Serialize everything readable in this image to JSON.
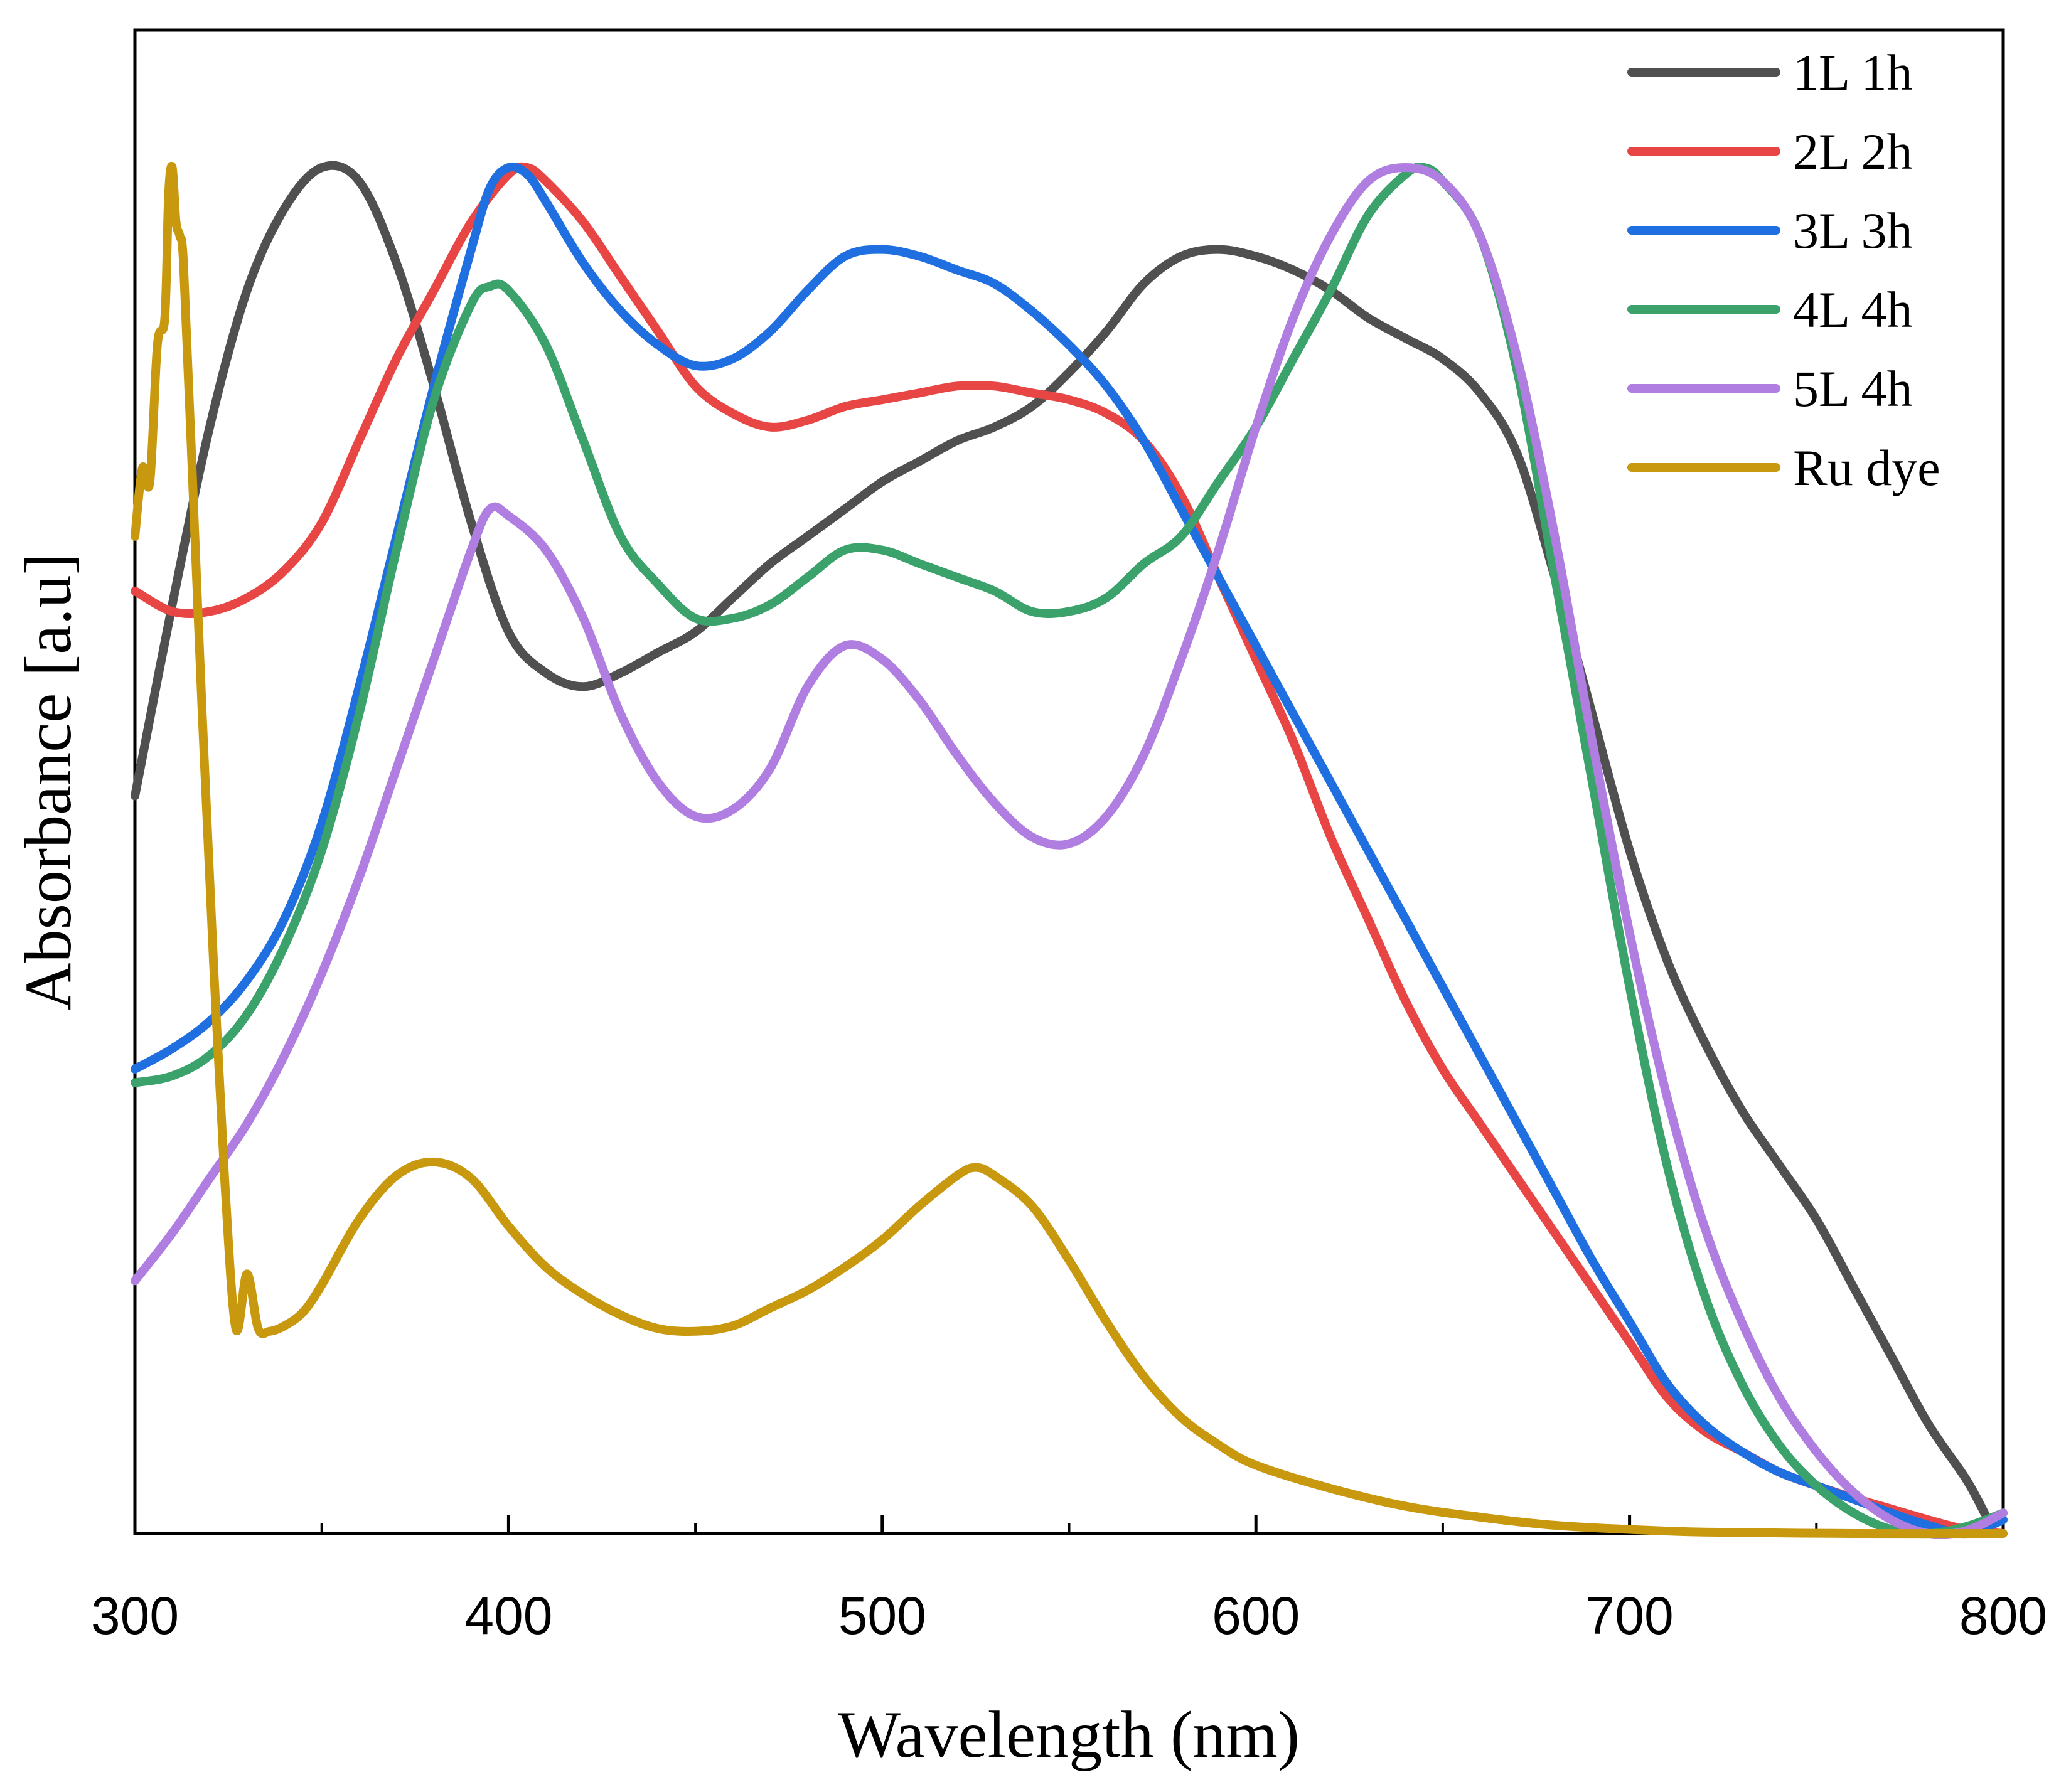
{
  "chart_data": {
    "type": "line",
    "title": "",
    "xlabel": "Wavelength (nm)",
    "ylabel": "Absorbance [a.u]",
    "xlim": [
      300,
      800
    ],
    "ylim": [
      0,
      1
    ],
    "xticks": [
      "300",
      "400",
      "500",
      "600",
      "700",
      "800"
    ],
    "xtick_values": [
      300,
      400,
      500,
      600,
      700,
      800
    ],
    "x_minor_step": 50,
    "y_ticks_shown": false,
    "grid": false,
    "legend_position": "top-right",
    "series": [
      {
        "name": "1L 1h",
        "color": "#505050",
        "points": [
          [
            300,
            0.54
          ],
          [
            310,
            0.68
          ],
          [
            320,
            0.81
          ],
          [
            330,
            0.91
          ],
          [
            340,
            0.97
          ],
          [
            350,
            1.0
          ],
          [
            360,
            0.99
          ],
          [
            370,
            0.93
          ],
          [
            380,
            0.84
          ],
          [
            390,
            0.74
          ],
          [
            400,
            0.66
          ],
          [
            410,
            0.63
          ],
          [
            420,
            0.62
          ],
          [
            430,
            0.63
          ],
          [
            440,
            0.645
          ],
          [
            450,
            0.66
          ],
          [
            460,
            0.685
          ],
          [
            470,
            0.71
          ],
          [
            480,
            0.73
          ],
          [
            490,
            0.75
          ],
          [
            500,
            0.77
          ],
          [
            510,
            0.785
          ],
          [
            520,
            0.8
          ],
          [
            530,
            0.81
          ],
          [
            540,
            0.825
          ],
          [
            550,
            0.85
          ],
          [
            560,
            0.88
          ],
          [
            570,
            0.915
          ],
          [
            580,
            0.935
          ],
          [
            590,
            0.94
          ],
          [
            600,
            0.935
          ],
          [
            610,
            0.925
          ],
          [
            620,
            0.91
          ],
          [
            630,
            0.89
          ],
          [
            640,
            0.875
          ],
          [
            650,
            0.86
          ],
          [
            660,
            0.835
          ],
          [
            670,
            0.79
          ],
          [
            680,
            0.7
          ],
          [
            690,
            0.6
          ],
          [
            700,
            0.5
          ],
          [
            710,
            0.42
          ],
          [
            720,
            0.36
          ],
          [
            730,
            0.31
          ],
          [
            740,
            0.27
          ],
          [
            750,
            0.23
          ],
          [
            760,
            0.18
          ],
          [
            770,
            0.13
          ],
          [
            780,
            0.08
          ],
          [
            790,
            0.04
          ],
          [
            795,
            0.015
          ]
        ]
      },
      {
        "name": "2L 2h",
        "color": "#e84545",
        "points": [
          [
            300,
            0.69
          ],
          [
            310,
            0.675
          ],
          [
            320,
            0.675
          ],
          [
            330,
            0.685
          ],
          [
            340,
            0.705
          ],
          [
            350,
            0.74
          ],
          [
            360,
            0.8
          ],
          [
            370,
            0.86
          ],
          [
            380,
            0.91
          ],
          [
            390,
            0.96
          ],
          [
            400,
            0.995
          ],
          [
            405,
            1.0
          ],
          [
            410,
            0.99
          ],
          [
            420,
            0.96
          ],
          [
            430,
            0.92
          ],
          [
            440,
            0.88
          ],
          [
            450,
            0.84
          ],
          [
            460,
            0.82
          ],
          [
            470,
            0.81
          ],
          [
            480,
            0.815
          ],
          [
            490,
            0.825
          ],
          [
            500,
            0.83
          ],
          [
            510,
            0.835
          ],
          [
            520,
            0.84
          ],
          [
            530,
            0.84
          ],
          [
            540,
            0.835
          ],
          [
            550,
            0.83
          ],
          [
            560,
            0.82
          ],
          [
            570,
            0.8
          ],
          [
            580,
            0.76
          ],
          [
            590,
            0.7
          ],
          [
            600,
            0.64
          ],
          [
            610,
            0.58
          ],
          [
            620,
            0.51
          ],
          [
            630,
            0.45
          ],
          [
            640,
            0.39
          ],
          [
            650,
            0.34
          ],
          [
            660,
            0.3
          ],
          [
            670,
            0.26
          ],
          [
            680,
            0.22
          ],
          [
            690,
            0.18
          ],
          [
            700,
            0.14
          ],
          [
            710,
            0.1
          ],
          [
            720,
            0.075
          ],
          [
            730,
            0.06
          ],
          [
            740,
            0.045
          ],
          [
            750,
            0.035
          ],
          [
            760,
            0.026
          ],
          [
            770,
            0.018
          ],
          [
            780,
            0.01
          ],
          [
            790,
            0.003
          ],
          [
            800,
            0.0
          ]
        ]
      },
      {
        "name": "3L 3h",
        "color": "#1f6fe0",
        "points": [
          [
            300,
            0.34
          ],
          [
            310,
            0.355
          ],
          [
            320,
            0.375
          ],
          [
            330,
            0.405
          ],
          [
            340,
            0.45
          ],
          [
            350,
            0.52
          ],
          [
            360,
            0.62
          ],
          [
            370,
            0.73
          ],
          [
            380,
            0.84
          ],
          [
            390,
            0.94
          ],
          [
            395,
            0.985
          ],
          [
            400,
            1.0
          ],
          [
            405,
            0.995
          ],
          [
            410,
            0.975
          ],
          [
            420,
            0.93
          ],
          [
            430,
            0.895
          ],
          [
            440,
            0.87
          ],
          [
            450,
            0.855
          ],
          [
            460,
            0.86
          ],
          [
            470,
            0.88
          ],
          [
            480,
            0.91
          ],
          [
            490,
            0.935
          ],
          [
            500,
            0.94
          ],
          [
            510,
            0.935
          ],
          [
            520,
            0.925
          ],
          [
            530,
            0.915
          ],
          [
            540,
            0.895
          ],
          [
            550,
            0.87
          ],
          [
            560,
            0.84
          ],
          [
            570,
            0.8
          ],
          [
            580,
            0.75
          ],
          [
            590,
            0.7
          ],
          [
            600,
            0.65
          ],
          [
            610,
            0.6
          ],
          [
            620,
            0.55
          ],
          [
            630,
            0.5
          ],
          [
            640,
            0.45
          ],
          [
            650,
            0.4
          ],
          [
            660,
            0.35
          ],
          [
            670,
            0.3
          ],
          [
            680,
            0.25
          ],
          [
            690,
            0.2
          ],
          [
            700,
            0.155
          ],
          [
            710,
            0.11
          ],
          [
            720,
            0.08
          ],
          [
            730,
            0.06
          ],
          [
            740,
            0.045
          ],
          [
            750,
            0.035
          ],
          [
            760,
            0.025
          ],
          [
            770,
            0.015
          ],
          [
            780,
            0.006
          ],
          [
            790,
            0.0
          ],
          [
            800,
            0.01
          ]
        ]
      },
      {
        "name": "4L 4h",
        "color": "#3aa26a",
        "points": [
          [
            300,
            0.33
          ],
          [
            310,
            0.335
          ],
          [
            320,
            0.35
          ],
          [
            330,
            0.38
          ],
          [
            340,
            0.43
          ],
          [
            350,
            0.5
          ],
          [
            360,
            0.6
          ],
          [
            370,
            0.72
          ],
          [
            380,
            0.83
          ],
          [
            390,
            0.9
          ],
          [
            395,
            0.913
          ],
          [
            400,
            0.91
          ],
          [
            410,
            0.87
          ],
          [
            420,
            0.8
          ],
          [
            430,
            0.73
          ],
          [
            440,
            0.695
          ],
          [
            450,
            0.67
          ],
          [
            460,
            0.67
          ],
          [
            470,
            0.68
          ],
          [
            480,
            0.7
          ],
          [
            490,
            0.72
          ],
          [
            500,
            0.72
          ],
          [
            510,
            0.71
          ],
          [
            520,
            0.7
          ],
          [
            530,
            0.69
          ],
          [
            540,
            0.675
          ],
          [
            550,
            0.675
          ],
          [
            560,
            0.685
          ],
          [
            570,
            0.71
          ],
          [
            580,
            0.73
          ],
          [
            590,
            0.77
          ],
          [
            600,
            0.81
          ],
          [
            610,
            0.86
          ],
          [
            620,
            0.91
          ],
          [
            630,
            0.965
          ],
          [
            640,
            0.995
          ],
          [
            645,
            1.0
          ],
          [
            650,
            0.99
          ],
          [
            660,
            0.95
          ],
          [
            670,
            0.85
          ],
          [
            680,
            0.7
          ],
          [
            690,
            0.55
          ],
          [
            700,
            0.4
          ],
          [
            710,
            0.27
          ],
          [
            720,
            0.175
          ],
          [
            730,
            0.11
          ],
          [
            740,
            0.065
          ],
          [
            750,
            0.035
          ],
          [
            760,
            0.015
          ],
          [
            770,
            0.003
          ],
          [
            780,
            0.0
          ],
          [
            790,
            0.005
          ],
          [
            800,
            0.015
          ]
        ]
      },
      {
        "name": "5L 4h",
        "color": "#b07ee0",
        "points": [
          [
            300,
            0.185
          ],
          [
            310,
            0.22
          ],
          [
            320,
            0.26
          ],
          [
            330,
            0.3
          ],
          [
            340,
            0.35
          ],
          [
            350,
            0.41
          ],
          [
            360,
            0.48
          ],
          [
            370,
            0.56
          ],
          [
            380,
            0.64
          ],
          [
            390,
            0.72
          ],
          [
            395,
            0.75
          ],
          [
            400,
            0.745
          ],
          [
            410,
            0.72
          ],
          [
            420,
            0.67
          ],
          [
            430,
            0.6
          ],
          [
            440,
            0.55
          ],
          [
            450,
            0.525
          ],
          [
            460,
            0.53
          ],
          [
            470,
            0.56
          ],
          [
            480,
            0.62
          ],
          [
            490,
            0.65
          ],
          [
            500,
            0.64
          ],
          [
            510,
            0.61
          ],
          [
            520,
            0.57
          ],
          [
            530,
            0.535
          ],
          [
            540,
            0.51
          ],
          [
            550,
            0.505
          ],
          [
            560,
            0.525
          ],
          [
            570,
            0.57
          ],
          [
            580,
            0.64
          ],
          [
            590,
            0.72
          ],
          [
            600,
            0.81
          ],
          [
            610,
            0.89
          ],
          [
            620,
            0.95
          ],
          [
            630,
            0.99
          ],
          [
            640,
            1.0
          ],
          [
            650,
            0.99
          ],
          [
            660,
            0.95
          ],
          [
            670,
            0.86
          ],
          [
            680,
            0.73
          ],
          [
            690,
            0.58
          ],
          [
            700,
            0.44
          ],
          [
            710,
            0.32
          ],
          [
            720,
            0.225
          ],
          [
            730,
            0.155
          ],
          [
            740,
            0.1
          ],
          [
            750,
            0.06
          ],
          [
            760,
            0.03
          ],
          [
            770,
            0.01
          ],
          [
            780,
            0.0
          ],
          [
            790,
            0.002
          ],
          [
            800,
            0.015
          ]
        ]
      },
      {
        "name": "Ru dye",
        "color": "#c8990e",
        "points": [
          [
            300,
            0.73
          ],
          [
            302,
            0.78
          ],
          [
            304,
            0.77
          ],
          [
            306,
            0.87
          ],
          [
            308,
            0.89
          ],
          [
            309,
            0.98
          ],
          [
            310,
            1.0
          ],
          [
            311,
            0.96
          ],
          [
            312,
            0.95
          ],
          [
            313,
            0.93
          ],
          [
            315,
            0.8
          ],
          [
            318,
            0.6
          ],
          [
            321,
            0.42
          ],
          [
            324,
            0.26
          ],
          [
            327,
            0.15
          ],
          [
            330,
            0.19
          ],
          [
            333,
            0.15
          ],
          [
            336,
            0.148
          ],
          [
            340,
            0.152
          ],
          [
            345,
            0.162
          ],
          [
            350,
            0.182
          ],
          [
            360,
            0.23
          ],
          [
            370,
            0.262
          ],
          [
            380,
            0.272
          ],
          [
            390,
            0.26
          ],
          [
            400,
            0.225
          ],
          [
            410,
            0.195
          ],
          [
            420,
            0.175
          ],
          [
            430,
            0.16
          ],
          [
            440,
            0.15
          ],
          [
            450,
            0.148
          ],
          [
            460,
            0.152
          ],
          [
            470,
            0.165
          ],
          [
            480,
            0.178
          ],
          [
            490,
            0.195
          ],
          [
            500,
            0.215
          ],
          [
            510,
            0.24
          ],
          [
            520,
            0.262
          ],
          [
            525,
            0.268
          ],
          [
            530,
            0.262
          ],
          [
            540,
            0.24
          ],
          [
            550,
            0.2
          ],
          [
            560,
            0.155
          ],
          [
            570,
            0.115
          ],
          [
            580,
            0.085
          ],
          [
            590,
            0.065
          ],
          [
            600,
            0.05
          ],
          [
            620,
            0.033
          ],
          [
            640,
            0.02
          ],
          [
            660,
            0.012
          ],
          [
            680,
            0.006
          ],
          [
            700,
            0.003
          ],
          [
            720,
            0.001
          ],
          [
            760,
            0.0
          ],
          [
            800,
            0.0
          ]
        ]
      }
    ]
  }
}
